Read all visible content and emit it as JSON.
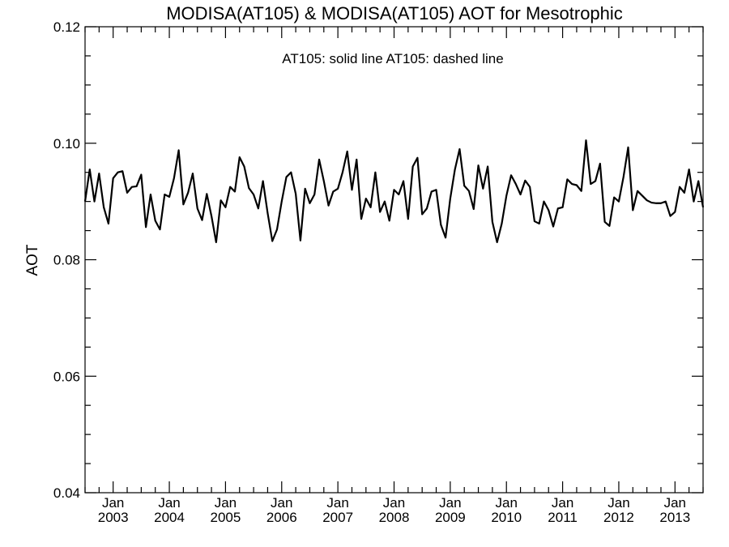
{
  "chart_data": {
    "type": "line",
    "title": "MODISA(AT105) & MODISA(AT105)  AOT for Mesotrophic",
    "annotation": "AT105: solid line   AT105: dashed line",
    "ylabel": "AOT",
    "xlabel": "",
    "ylim": [
      0.04,
      0.12
    ],
    "yticks": [
      0.04,
      0.06,
      0.08,
      0.1,
      0.12
    ],
    "ytick_labels": [
      "0.04",
      "0.06",
      "0.08",
      "0.10",
      "0.12"
    ],
    "xlim": [
      "2002-07",
      "2013-07"
    ],
    "xtick_month_label": "Jan",
    "xtick_years": [
      "2003",
      "2004",
      "2005",
      "2006",
      "2007",
      "2008",
      "2009",
      "2010",
      "2011",
      "2012",
      "2013"
    ],
    "grid": false,
    "line_color": "#000000",
    "series": [
      {
        "style": "solid",
        "x": [
          "2002-07",
          "2002-08",
          "2002-09",
          "2002-10",
          "2002-11",
          "2002-12",
          "2003-01",
          "2003-02",
          "2003-03",
          "2003-04",
          "2003-05",
          "2003-06",
          "2003-07",
          "2003-08",
          "2003-09",
          "2003-10",
          "2003-11",
          "2003-12",
          "2004-01",
          "2004-02",
          "2004-03",
          "2004-04",
          "2004-05",
          "2004-06",
          "2004-07",
          "2004-08",
          "2004-09",
          "2004-10",
          "2004-11",
          "2004-12",
          "2005-01",
          "2005-02",
          "2005-03",
          "2005-04",
          "2005-05",
          "2005-06",
          "2005-07",
          "2005-08",
          "2005-09",
          "2005-10",
          "2005-11",
          "2005-12",
          "2006-01",
          "2006-02",
          "2006-03",
          "2006-04",
          "2006-05",
          "2006-06",
          "2006-07",
          "2006-08",
          "2006-09",
          "2006-10",
          "2006-11",
          "2006-12",
          "2007-01",
          "2007-02",
          "2007-03",
          "2007-04",
          "2007-05",
          "2007-06",
          "2007-07",
          "2007-08",
          "2007-09",
          "2007-10",
          "2007-11",
          "2007-12",
          "2008-01",
          "2008-02",
          "2008-03",
          "2008-04",
          "2008-05",
          "2008-06",
          "2008-07",
          "2008-08",
          "2008-09",
          "2008-10",
          "2008-11",
          "2008-12",
          "2009-01",
          "2009-02",
          "2009-03",
          "2009-04",
          "2009-05",
          "2009-06",
          "2009-07",
          "2009-08",
          "2009-09",
          "2009-10",
          "2009-11",
          "2009-12",
          "2010-01",
          "2010-02",
          "2010-03",
          "2010-04",
          "2010-05",
          "2010-06",
          "2010-07",
          "2010-08",
          "2010-09",
          "2010-10",
          "2010-11",
          "2010-12",
          "2011-01",
          "2011-02",
          "2011-03",
          "2011-04",
          "2011-05",
          "2011-06",
          "2011-07",
          "2011-08",
          "2011-09",
          "2011-10",
          "2011-11",
          "2011-12",
          "2012-01",
          "2012-02",
          "2012-03",
          "2012-04",
          "2012-05",
          "2012-06",
          "2012-07",
          "2012-08",
          "2012-09",
          "2012-10",
          "2012-11",
          "2012-12",
          "2013-01",
          "2013-02",
          "2013-03",
          "2013-04",
          "2013-05",
          "2013-06",
          "2013-07"
        ],
        "y": [
          0.09,
          0.0955,
          0.09,
          0.0948,
          0.089,
          0.0862,
          0.094,
          0.095,
          0.0952,
          0.0915,
          0.0925,
          0.0926,
          0.0946,
          0.0856,
          0.0912,
          0.0867,
          0.0852,
          0.0912,
          0.0908,
          0.094,
          0.0988,
          0.0895,
          0.0915,
          0.0948,
          0.0888,
          0.0868,
          0.0913,
          0.0875,
          0.083,
          0.0902,
          0.089,
          0.0925,
          0.0917,
          0.0976,
          0.096,
          0.0923,
          0.0912,
          0.0888,
          0.0935,
          0.088,
          0.0832,
          0.0852,
          0.09,
          0.0942,
          0.095,
          0.0913,
          0.0833,
          0.0922,
          0.0897,
          0.0912,
          0.0972,
          0.0935,
          0.0893,
          0.0917,
          0.0922,
          0.095,
          0.0986,
          0.092,
          0.0972,
          0.087,
          0.0905,
          0.089,
          0.095,
          0.0882,
          0.09,
          0.0867,
          0.092,
          0.0912,
          0.0935,
          0.087,
          0.096,
          0.0975,
          0.0878,
          0.0888,
          0.0917,
          0.092,
          0.086,
          0.0838,
          0.0905,
          0.0955,
          0.099,
          0.0927,
          0.0918,
          0.0887,
          0.0962,
          0.0922,
          0.096,
          0.0865,
          0.083,
          0.0862,
          0.091,
          0.0945,
          0.093,
          0.0912,
          0.0936,
          0.0925,
          0.0866,
          0.0862,
          0.09,
          0.0885,
          0.0857,
          0.0888,
          0.089,
          0.0938,
          0.093,
          0.0928,
          0.0918,
          0.1005,
          0.093,
          0.0935,
          0.0965,
          0.0865,
          0.0858,
          0.0907,
          0.09,
          0.0942,
          0.0993,
          0.0885,
          0.0918,
          0.091,
          0.0902,
          0.0898,
          0.0897,
          0.0897,
          0.09,
          0.0875,
          0.0882,
          0.0925,
          0.0915,
          0.0955,
          0.09,
          0.0935,
          0.089
        ]
      }
    ]
  }
}
